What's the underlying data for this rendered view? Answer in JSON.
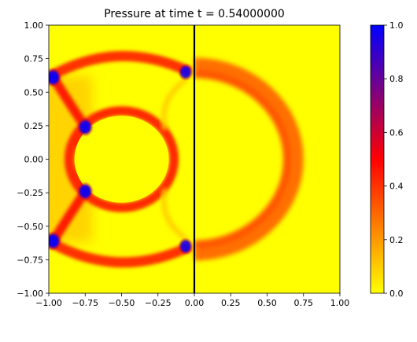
{
  "chart_data": {
    "type": "heatmap",
    "title": "Pressure at time t =     0.54000000",
    "xlabel": "",
    "ylabel": "",
    "xlim": [
      -1.0,
      1.0
    ],
    "ylim": [
      -1.0,
      1.0
    ],
    "x_ticks": [
      "−1.00",
      "−0.75",
      "−0.50",
      "−0.25",
      "0.00",
      "0.25",
      "0.50",
      "0.75",
      "1.00"
    ],
    "y_ticks": [
      "−1.00",
      "−0.75",
      "−0.50",
      "−0.25",
      "0.00",
      "0.25",
      "0.50",
      "0.75",
      "1.00"
    ],
    "x_tick_values": [
      -1.0,
      -0.75,
      -0.5,
      -0.25,
      0.0,
      0.25,
      0.5,
      0.75,
      1.0
    ],
    "y_tick_values": [
      -1.0,
      -0.75,
      -0.5,
      -0.25,
      0.0,
      0.25,
      0.5,
      0.75,
      1.0
    ],
    "colorbar": {
      "range": [
        0.0,
        1.0
      ],
      "ticks": [
        "0.0",
        "0.2",
        "0.4",
        "0.6",
        "0.8",
        "1.0"
      ],
      "tick_values": [
        0.0,
        0.2,
        0.4,
        0.6,
        0.8,
        1.0
      ],
      "colors": [
        "#ffff00",
        "#ff0000",
        "#0000ff"
      ]
    },
    "grid": false,
    "vertical_line": {
      "x": 0.0,
      "color": "#000000"
    },
    "features": [
      {
        "name": "circular cylinder",
        "cx": -0.5,
        "cy": 0.0,
        "r": 0.33,
        "value": 0.0
      },
      {
        "name": "cylinder bow shock ring",
        "cx": -0.5,
        "cy": 0.0,
        "r": 0.36,
        "value": 0.42
      },
      {
        "name": "outer shock arc (left)",
        "cx": -0.5,
        "cy": 0.0,
        "r": 0.73,
        "value": 0.4
      },
      {
        "name": "outer shock arc (right)",
        "cx": 0.0,
        "cy": 0.0,
        "r": 0.68,
        "value": 0.28
      },
      {
        "name": "triple point",
        "x": -0.97,
        "y": 0.61,
        "value": 1.0
      },
      {
        "name": "triple point",
        "x": -0.97,
        "y": -0.61,
        "value": 1.0
      },
      {
        "name": "triple point",
        "x": -0.75,
        "y": 0.24,
        "value": 0.95
      },
      {
        "name": "triple point",
        "x": -0.75,
        "y": -0.24,
        "value": 0.95
      },
      {
        "name": "triple point",
        "x": -0.06,
        "y": 0.65,
        "value": 0.75
      },
      {
        "name": "triple point",
        "x": -0.06,
        "y": -0.65,
        "value": 0.75
      }
    ]
  }
}
